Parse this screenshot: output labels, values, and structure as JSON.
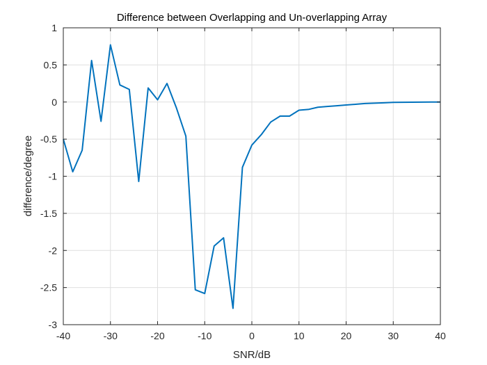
{
  "chart_data": {
    "type": "line",
    "title": "Difference between Overlapping and Un-overlapping Array",
    "xlabel": "SNR/dB",
    "ylabel": "difference/degree",
    "xlim": [
      -40,
      40
    ],
    "ylim": [
      -3,
      1
    ],
    "xticks": [
      -40,
      -30,
      -20,
      -10,
      0,
      10,
      20,
      30,
      40
    ],
    "xtick_labels": [
      "-40",
      "-30",
      "-20",
      "-10",
      "0",
      "10",
      "20",
      "30",
      "40"
    ],
    "yticks": [
      1,
      0.5,
      0,
      -0.5,
      -1,
      -1.5,
      -2,
      -2.5,
      -3
    ],
    "ytick_labels": [
      "1",
      "0.5",
      "0",
      "-0.5",
      "-1",
      "-1.5",
      "-2",
      "-2.5",
      "-3"
    ],
    "grid": true,
    "line_color": "#0072BD",
    "series": [
      {
        "x": [
          -40,
          -38,
          -36,
          -34,
          -32,
          -30,
          -28,
          -26,
          -24,
          -22,
          -20,
          -18,
          -16,
          -14,
          -12,
          -10,
          -8,
          -6,
          -4,
          -2,
          0,
          2,
          4,
          6,
          8,
          10,
          12,
          14,
          16,
          18,
          20,
          22,
          24,
          26,
          28,
          30,
          32,
          34,
          36,
          38,
          40
        ],
        "y": [
          -0.5,
          -0.94,
          -0.65,
          0.56,
          -0.26,
          0.77,
          0.23,
          0.17,
          -1.07,
          0.19,
          0.03,
          0.25,
          -0.08,
          -0.46,
          -2.53,
          -2.58,
          -1.94,
          -1.83,
          -2.78,
          -0.88,
          -0.58,
          -0.44,
          -0.27,
          -0.19,
          -0.19,
          -0.11,
          -0.1,
          -0.07,
          -0.06,
          -0.05,
          -0.04,
          -0.03,
          -0.02,
          -0.015,
          -0.01,
          -0.005,
          -0.003,
          -0.002,
          -0.001,
          0,
          0
        ]
      }
    ]
  }
}
